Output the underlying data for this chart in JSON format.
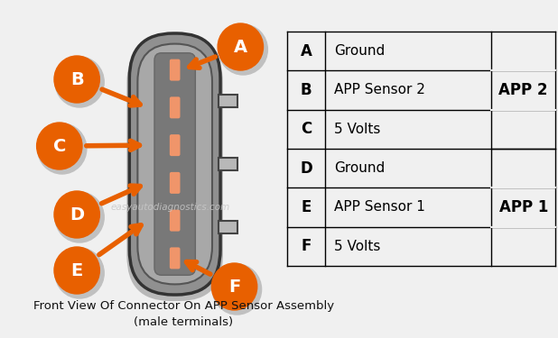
{
  "bg_color": "#f0f0f0",
  "title_line1": "Front View Of Connector On APP Sensor Assembly",
  "title_line2": "(male terminals)",
  "outer_body_color": "#909090",
  "outer_body_edge": "#333333",
  "inner_body_color": "#a8a8a8",
  "inner_body_edge": "#555555",
  "mid_section_color": "#787878",
  "pin_color": "#F0956A",
  "tab_color": "#b8b8b8",
  "tab_edge": "#444444",
  "circle_color": "#E86000",
  "circle_shadow": "#c0c0c0",
  "circle_text_color": "#ffffff",
  "arrow_color": "#E86000",
  "table_rows": [
    [
      "A",
      "Ground"
    ],
    [
      "B",
      "APP Sensor 2"
    ],
    [
      "C",
      "5 Volts"
    ],
    [
      "D",
      "Ground"
    ],
    [
      "E",
      "APP Sensor 1"
    ],
    [
      "F",
      "5 Volts"
    ]
  ],
  "app2_label": "APP 2",
  "app1_label": "APP 1",
  "watermark": "easyautodiagnostics.com"
}
